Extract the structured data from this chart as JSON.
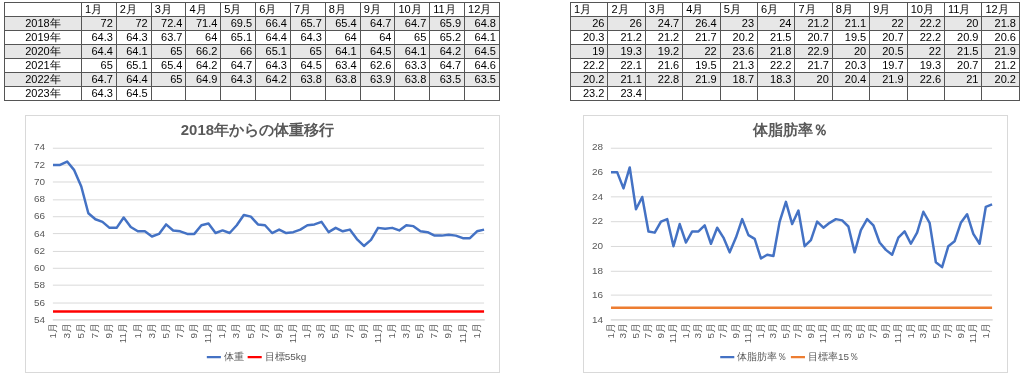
{
  "chart_data": [
    {
      "type": "heatmap",
      "categories": [
        "1月",
        "2月",
        "3月",
        "4月",
        "5月",
        "6月",
        "7月",
        "8月",
        "9月",
        "10月",
        "11月",
        "12月"
      ],
      "y_categories": [
        "2018年",
        "2019年",
        "2020年",
        "2021年",
        "2022年",
        "2023年"
      ],
      "cells": [
        [
          72,
          72,
          72.4,
          71.4,
          69.5,
          66.4,
          65.7,
          65.4,
          64.7,
          64.7,
          65.9,
          64.8
        ],
        [
          64.3,
          64.3,
          63.7,
          64,
          65.1,
          64.4,
          64.3,
          64,
          64,
          65,
          65.2,
          64.1
        ],
        [
          64.4,
          64.1,
          65,
          66.2,
          66,
          65.1,
          65,
          64.1,
          64.5,
          64.1,
          64.2,
          64.5
        ],
        [
          65,
          65.1,
          65.4,
          64.2,
          64.7,
          64.3,
          64.5,
          63.4,
          62.6,
          63.3,
          64.7,
          64.6
        ],
        [
          64.7,
          64.4,
          65,
          64.9,
          64.3,
          64.2,
          63.8,
          63.8,
          63.9,
          63.8,
          63.5,
          63.5
        ],
        [
          64.3,
          64.5,
          null,
          null,
          null,
          null,
          null,
          null,
          null,
          null,
          null,
          null
        ]
      ],
      "cell_labels": [
        [
          "72",
          "72",
          "72.4",
          "71.4",
          "69.5",
          "66.4",
          "65.7",
          "65.4",
          "64.7",
          "64.7",
          "65.9",
          "64.8"
        ],
        [
          "64.3",
          "64.3",
          "63.7",
          "64",
          "65.1",
          "64.4",
          "64.3",
          "64",
          "64",
          "65",
          "65.2",
          "64.1"
        ],
        [
          "64.4",
          "64.1",
          "65",
          "66.2",
          "66",
          "65.1",
          "65",
          "64.1",
          "64.5",
          "64.1",
          "64.2",
          "64.5"
        ],
        [
          "65",
          "65.1",
          "65.4",
          "64.2",
          "64.7",
          "64.3",
          "64.5",
          "63.4",
          "62.6",
          "63.3",
          "64.7",
          "64.6"
        ],
        [
          "64.7",
          "64.4",
          "65",
          "64.9",
          "64.3",
          "64.2",
          "63.8",
          "63.8",
          "63.9",
          "63.8",
          "63.5",
          "63.5"
        ],
        [
          "64.3",
          "64.5",
          null,
          null,
          null,
          null,
          null,
          null,
          null,
          null,
          null,
          null
        ]
      ]
    },
    {
      "type": "heatmap",
      "categories": [
        "1月",
        "2月",
        "3月",
        "4月",
        "5月",
        "6月",
        "7月",
        "8月",
        "9月",
        "10月",
        "11月",
        "12月"
      ],
      "y_categories": [
        null,
        null,
        null,
        null,
        null,
        null
      ],
      "cells": [
        [
          26,
          26,
          24.7,
          26.4,
          23,
          24,
          21.2,
          21.1,
          22,
          22.2,
          20,
          21.8
        ],
        [
          20.3,
          21.2,
          21.2,
          21.7,
          20.2,
          21.5,
          20.7,
          19.5,
          20.7,
          22.2,
          20.9,
          20.6
        ],
        [
          19,
          19.3,
          19.2,
          22,
          23.6,
          21.8,
          22.9,
          20,
          20.5,
          22,
          21.5,
          21.9
        ],
        [
          22.2,
          22.1,
          21.6,
          19.5,
          21.3,
          22.2,
          21.7,
          20.3,
          19.7,
          19.3,
          20.7,
          21.2
        ],
        [
          20.2,
          21.1,
          22.8,
          21.9,
          18.7,
          18.3,
          20,
          20.4,
          21.9,
          22.6,
          21,
          20.2
        ],
        [
          23.2,
          23.4,
          null,
          null,
          null,
          null,
          null,
          null,
          null,
          null,
          null,
          null
        ]
      ],
      "cell_labels": [
        [
          "26",
          "26",
          "24.7",
          "26.4",
          "23",
          "24",
          "21.2",
          "21.1",
          "22",
          "22.2",
          "20",
          "21.8"
        ],
        [
          "20.3",
          "21.2",
          "21.2",
          "21.7",
          "20.2",
          "21.5",
          "20.7",
          "19.5",
          "20.7",
          "22.2",
          "20.9",
          "20.6"
        ],
        [
          "19",
          "19.3",
          "19.2",
          "22",
          "23.6",
          "21.8",
          "22.9",
          "20",
          "20.5",
          "22",
          "21.5",
          "21.9"
        ],
        [
          "22.2",
          "22.1",
          "21.6",
          "19.5",
          "21.3",
          "22.2",
          "21.7",
          "20.3",
          "19.7",
          "19.3",
          "20.7",
          "21.2"
        ],
        [
          "20.2",
          "21.1",
          "22.8",
          "21.9",
          "18.7",
          "18.3",
          "20",
          "20.4",
          "21.9",
          "22.6",
          "21",
          "20.2"
        ],
        [
          "23.2",
          "23.4",
          null,
          null,
          null,
          null,
          null,
          null,
          null,
          null,
          null,
          null
        ]
      ]
    },
    {
      "type": "line",
      "title": "2018年からの体重移行",
      "categories": [
        "1月",
        null,
        "3月",
        null,
        "5月",
        null,
        "7月",
        null,
        "9月",
        null,
        "11月",
        null,
        "1月",
        null,
        "3月",
        null,
        "5月",
        null,
        "7月",
        null,
        "9月",
        null,
        "11月",
        null,
        "1月",
        null,
        "3月",
        null,
        "5月",
        null,
        "7月",
        null,
        "9月",
        null,
        "11月",
        null,
        "1月",
        null,
        "3月",
        null,
        "5月",
        null,
        "7月",
        null,
        "9月",
        null,
        "11月",
        null,
        "1月",
        null,
        "3月",
        null,
        "5月",
        null,
        "7月",
        null,
        "9月",
        null,
        "11月",
        null,
        "1月",
        null
      ],
      "series": [
        {
          "name": "体重",
          "color": "#4472c4",
          "values": [
            72,
            72,
            72.4,
            71.4,
            69.5,
            66.4,
            65.7,
            65.4,
            64.7,
            64.7,
            65.9,
            64.8,
            64.3,
            64.3,
            63.7,
            64,
            65.1,
            64.4,
            64.3,
            64,
            64,
            65,
            65.2,
            64.1,
            64.4,
            64.1,
            65,
            66.2,
            66,
            65.1,
            65,
            64.1,
            64.5,
            64.1,
            64.2,
            64.5,
            65,
            65.1,
            65.4,
            64.2,
            64.7,
            64.3,
            64.5,
            63.4,
            62.6,
            63.3,
            64.7,
            64.6,
            64.7,
            64.4,
            65,
            64.9,
            64.3,
            64.2,
            63.8,
            63.8,
            63.9,
            63.8,
            63.5,
            63.5,
            64.3,
            64.5
          ]
        },
        {
          "name": "目標55kg",
          "color": "#ff0000",
          "values": [
            55,
            55,
            55,
            55,
            55,
            55,
            55,
            55,
            55,
            55,
            55,
            55,
            55,
            55,
            55,
            55,
            55,
            55,
            55,
            55,
            55,
            55,
            55,
            55,
            55,
            55,
            55,
            55,
            55,
            55,
            55,
            55,
            55,
            55,
            55,
            55,
            55,
            55,
            55,
            55,
            55,
            55,
            55,
            55,
            55,
            55,
            55,
            55,
            55,
            55,
            55,
            55,
            55,
            55,
            55,
            55,
            55,
            55,
            55,
            55,
            55,
            55
          ]
        }
      ],
      "ylim": [
        54,
        74
      ],
      "yticks": [
        54,
        56,
        58,
        60,
        62,
        64,
        66,
        68,
        70,
        72,
        74
      ],
      "grid": "y",
      "legend": "bottom",
      "marker": "none",
      "line_style": "solid"
    },
    {
      "type": "line",
      "title": "体脂肪率％",
      "categories": [
        "1月",
        null,
        "3月",
        null,
        "5月",
        null,
        "7月",
        null,
        "9月",
        null,
        "11月",
        null,
        "1月",
        null,
        "3月",
        null,
        "5月",
        null,
        "7月",
        null,
        "9月",
        null,
        "11月",
        null,
        "1月",
        null,
        "3月",
        null,
        "5月",
        null,
        "7月",
        null,
        "9月",
        null,
        "11月",
        null,
        "1月",
        null,
        "3月",
        null,
        "5月",
        null,
        "7月",
        null,
        "9月",
        null,
        "11月",
        null,
        "1月",
        null,
        "3月",
        null,
        "5月",
        null,
        "7月",
        null,
        "9月",
        null,
        "11月",
        null,
        "1月",
        null
      ],
      "series": [
        {
          "name": "体脂肪率％",
          "color": "#4472c4",
          "values": [
            26,
            26,
            24.7,
            26.4,
            23,
            24,
            21.2,
            21.1,
            22,
            22.2,
            20,
            21.8,
            20.3,
            21.2,
            21.2,
            21.7,
            20.2,
            21.5,
            20.7,
            19.5,
            20.7,
            22.2,
            20.9,
            20.6,
            19,
            19.3,
            19.2,
            22,
            23.6,
            21.8,
            22.9,
            20,
            20.5,
            22,
            21.5,
            21.9,
            22.2,
            22.1,
            21.6,
            19.5,
            21.3,
            22.2,
            21.7,
            20.3,
            19.7,
            19.3,
            20.7,
            21.2,
            20.2,
            21.1,
            22.8,
            21.9,
            18.7,
            18.3,
            20,
            20.4,
            21.9,
            22.6,
            21,
            20.2,
            23.2,
            23.4
          ]
        },
        {
          "name": "目標率15％",
          "color": "#ed7d31",
          "values": [
            15,
            15,
            15,
            15,
            15,
            15,
            15,
            15,
            15,
            15,
            15,
            15,
            15,
            15,
            15,
            15,
            15,
            15,
            15,
            15,
            15,
            15,
            15,
            15,
            15,
            15,
            15,
            15,
            15,
            15,
            15,
            15,
            15,
            15,
            15,
            15,
            15,
            15,
            15,
            15,
            15,
            15,
            15,
            15,
            15,
            15,
            15,
            15,
            15,
            15,
            15,
            15,
            15,
            15,
            15,
            15,
            15,
            15,
            15,
            15,
            15,
            15
          ]
        }
      ],
      "ylim": [
        14,
        28
      ],
      "yticks": [
        14,
        16,
        18,
        20,
        22,
        24,
        26,
        28
      ],
      "grid": "y",
      "legend": "bottom",
      "marker": "none",
      "line_style": "solid"
    }
  ]
}
